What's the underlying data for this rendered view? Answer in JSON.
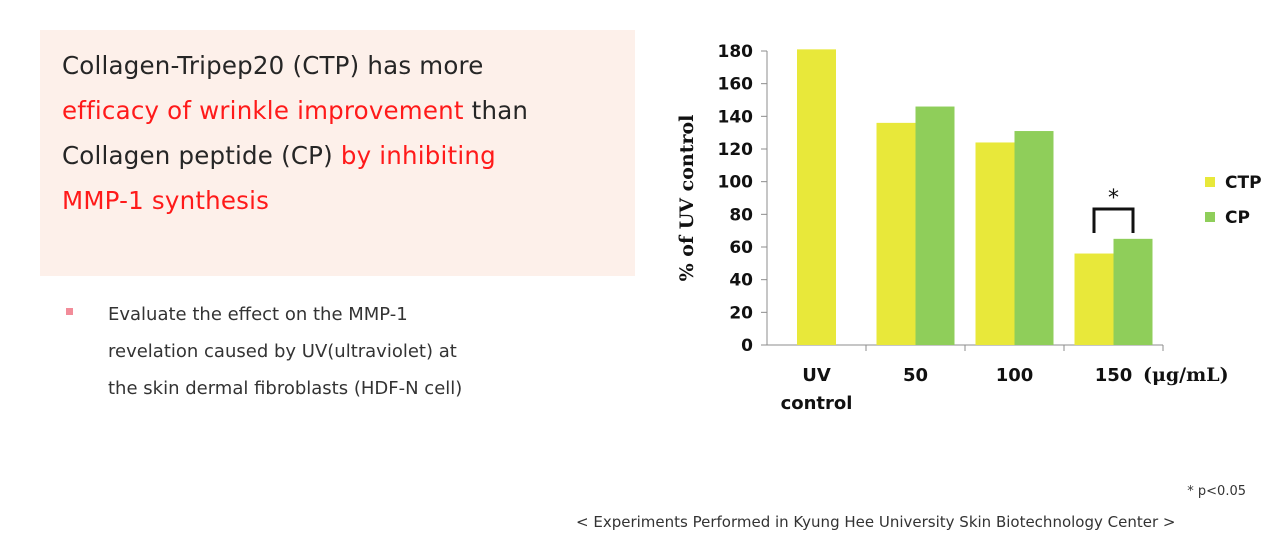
{
  "claim": {
    "line1": "Collagen-Tripep20 (CTP) has more",
    "line2_highlight": "efficacy of wrinkle improvement",
    "line2_rest": " than",
    "line3_plain": "Collagen peptide (CP) ",
    "line3_highlight": "by inhibiting",
    "line4_highlight": "MMP-1 synthesis"
  },
  "bullet": {
    "line1": "Evaluate the effect on the MMP-1",
    "line2": "revelation caused by UV(ultraviolet) at",
    "line3": "the skin dermal fibroblasts (HDF-N cell)"
  },
  "significance": "* p<0.05",
  "footer": "< Experiments Performed in Kyung Hee University Skin Biotechnology Center >",
  "colors": {
    "ctp": "#e8e83a",
    "cp": "#8fce5a",
    "highlight": "#ff1a1a",
    "panel": "#fdf0ea"
  },
  "chart_data": {
    "type": "bar",
    "ylabel": "% of UV control",
    "x_unit_label": "(μg/mL)",
    "ylim": [
      0,
      180
    ],
    "yticks": [
      0,
      20,
      40,
      60,
      80,
      100,
      120,
      140,
      160,
      180
    ],
    "categories": [
      "UV control",
      "50",
      "100",
      "150"
    ],
    "category_label_lines": [
      [
        "UV",
        "control"
      ],
      [
        "50"
      ],
      [
        "100"
      ],
      [
        "150"
      ]
    ],
    "series": [
      {
        "name": "CTP",
        "values": [
          181,
          136,
          124,
          56
        ]
      },
      {
        "name": "CP",
        "values": [
          null,
          146,
          131,
          65
        ]
      }
    ],
    "annotations": [
      {
        "category": "150",
        "text": "*",
        "type": "significance-bracket"
      }
    ],
    "legend": "right",
    "grid": false
  }
}
